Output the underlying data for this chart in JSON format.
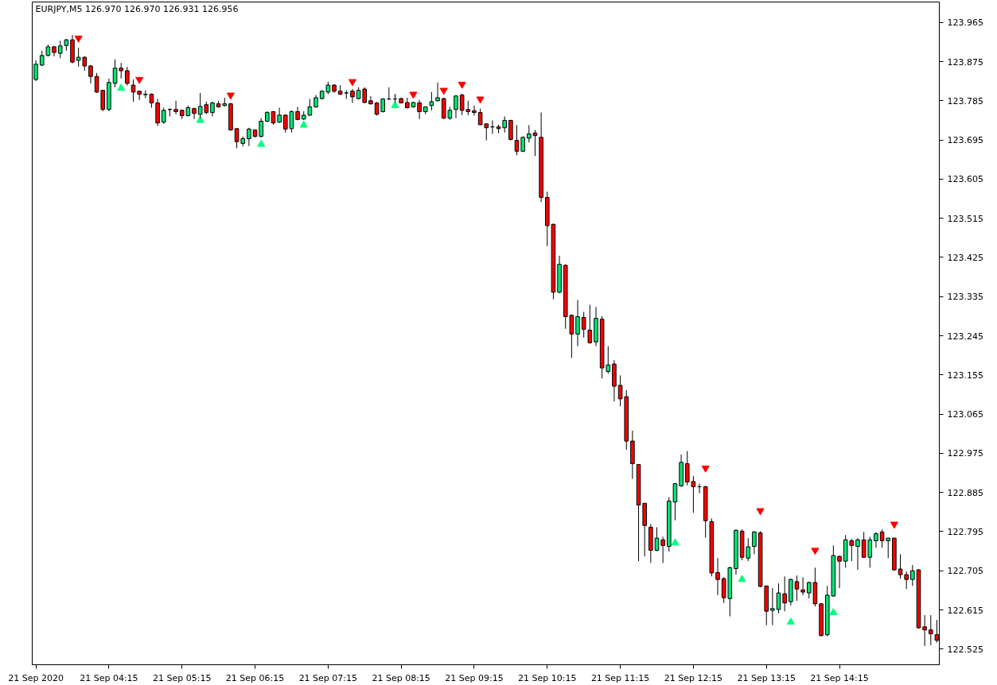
{
  "chart_data": {
    "type": "candlestick",
    "title": "EURJPY,M5 126.970 126.970 126.931 126.956",
    "x": [
      "2020-09-21T03:15",
      "2020-09-21T03:20",
      "2020-09-21T03:25",
      "2020-09-21T03:30",
      "2020-09-21T03:35",
      "2020-09-21T03:40",
      "2020-09-21T03:45",
      "2020-09-21T03:50",
      "2020-09-21T03:55",
      "2020-09-21T04:00",
      "2020-09-21T04:05",
      "2020-09-21T04:10",
      "2020-09-21T04:15",
      "2020-09-21T04:20",
      "2020-09-21T04:25",
      "2020-09-21T04:30",
      "2020-09-21T04:35",
      "2020-09-21T04:40",
      "2020-09-21T04:45",
      "2020-09-21T04:50",
      "2020-09-21T04:55",
      "2020-09-21T05:00",
      "2020-09-21T05:05",
      "2020-09-21T05:10",
      "2020-09-21T05:15",
      "2020-09-21T05:20",
      "2020-09-21T05:25",
      "2020-09-21T05:30",
      "2020-09-21T05:35",
      "2020-09-21T05:40",
      "2020-09-21T05:45",
      "2020-09-21T05:50",
      "2020-09-21T05:55",
      "2020-09-21T06:00",
      "2020-09-21T06:05",
      "2020-09-21T06:10",
      "2020-09-21T06:15",
      "2020-09-21T06:20",
      "2020-09-21T06:25",
      "2020-09-21T06:30",
      "2020-09-21T06:35",
      "2020-09-21T06:40",
      "2020-09-21T06:45",
      "2020-09-21T06:50",
      "2020-09-21T06:55",
      "2020-09-21T07:00",
      "2020-09-21T07:05",
      "2020-09-21T07:10",
      "2020-09-21T07:15",
      "2020-09-21T07:20",
      "2020-09-21T07:25",
      "2020-09-21T07:30",
      "2020-09-21T07:35",
      "2020-09-21T07:40",
      "2020-09-21T07:45",
      "2020-09-21T07:50",
      "2020-09-21T07:55",
      "2020-09-21T08:00",
      "2020-09-21T08:05",
      "2020-09-21T08:10",
      "2020-09-21T08:15",
      "2020-09-21T08:20",
      "2020-09-21T08:25",
      "2020-09-21T08:30",
      "2020-09-21T08:35",
      "2020-09-21T08:40",
      "2020-09-21T08:45",
      "2020-09-21T08:50",
      "2020-09-21T08:55",
      "2020-09-21T09:00",
      "2020-09-21T09:05",
      "2020-09-21T09:10",
      "2020-09-21T09:15",
      "2020-09-21T09:20",
      "2020-09-21T09:25",
      "2020-09-21T09:30",
      "2020-09-21T09:35",
      "2020-09-21T09:40",
      "2020-09-21T09:45",
      "2020-09-21T09:50",
      "2020-09-21T09:55",
      "2020-09-21T10:00",
      "2020-09-21T10:05",
      "2020-09-21T10:10",
      "2020-09-21T10:15",
      "2020-09-21T10:20",
      "2020-09-21T10:25",
      "2020-09-21T10:30",
      "2020-09-21T10:35",
      "2020-09-21T10:40",
      "2020-09-21T10:45",
      "2020-09-21T10:50",
      "2020-09-21T10:55",
      "2020-09-21T11:00",
      "2020-09-21T11:05",
      "2020-09-21T11:10",
      "2020-09-21T11:15",
      "2020-09-21T11:20",
      "2020-09-21T11:25",
      "2020-09-21T11:30",
      "2020-09-21T11:35",
      "2020-09-21T11:40",
      "2020-09-21T11:45",
      "2020-09-21T11:50",
      "2020-09-21T11:55",
      "2020-09-21T12:00",
      "2020-09-21T12:05",
      "2020-09-21T12:10",
      "2020-09-21T12:15",
      "2020-09-21T12:20",
      "2020-09-21T12:25",
      "2020-09-21T12:30",
      "2020-09-21T12:35",
      "2020-09-21T12:40",
      "2020-09-21T12:45",
      "2020-09-21T12:50",
      "2020-09-21T12:55",
      "2020-09-21T13:00",
      "2020-09-21T13:05",
      "2020-09-21T13:10",
      "2020-09-21T13:15",
      "2020-09-21T13:20",
      "2020-09-21T13:25",
      "2020-09-21T13:30",
      "2020-09-21T13:35",
      "2020-09-21T13:40",
      "2020-09-21T13:45",
      "2020-09-21T13:50",
      "2020-09-21T13:55",
      "2020-09-21T14:00",
      "2020-09-21T14:05",
      "2020-09-21T14:10",
      "2020-09-21T14:15",
      "2020-09-21T14:20",
      "2020-09-21T14:25",
      "2020-09-21T14:30",
      "2020-09-21T14:35",
      "2020-09-21T14:40",
      "2020-09-21T14:45",
      "2020-09-21T14:50",
      "2020-09-21T14:55",
      "2020-09-21T15:00",
      "2020-09-21T15:05",
      "2020-09-21T15:10",
      "2020-09-21T15:15",
      "2020-09-21T15:20",
      "2020-09-21T15:25",
      "2020-09-21T15:30",
      "2020-09-21T15:35"
    ],
    "ohlc": [
      [
        123.834,
        123.878,
        123.83,
        123.869
      ],
      [
        123.867,
        123.9,
        123.865,
        123.889
      ],
      [
        123.889,
        123.914,
        123.887,
        123.909
      ],
      [
        123.909,
        123.911,
        123.887,
        123.896
      ],
      [
        123.894,
        123.923,
        123.883,
        123.911
      ],
      [
        123.912,
        123.927,
        123.9,
        123.925
      ],
      [
        123.925,
        123.936,
        123.871,
        123.874
      ],
      [
        123.878,
        123.907,
        123.863,
        123.885
      ],
      [
        123.885,
        123.887,
        123.854,
        123.865
      ],
      [
        123.865,
        123.867,
        123.825,
        123.841
      ],
      [
        123.841,
        123.849,
        123.803,
        123.805
      ],
      [
        123.809,
        123.809,
        123.761,
        123.765
      ],
      [
        123.765,
        123.836,
        123.761,
        123.827
      ],
      [
        123.825,
        123.88,
        123.816,
        123.86
      ],
      [
        123.86,
        123.872,
        123.836,
        123.854
      ],
      [
        123.854,
        123.863,
        123.82,
        123.825
      ],
      [
        123.821,
        123.834,
        123.783,
        123.805
      ],
      [
        123.807,
        123.807,
        123.787,
        123.8
      ],
      [
        123.799,
        123.809,
        123.791,
        123.8
      ],
      [
        123.8,
        123.802,
        123.769,
        123.78
      ],
      [
        123.78,
        123.789,
        123.727,
        123.734
      ],
      [
        123.736,
        123.769,
        123.732,
        123.763
      ],
      [
        123.765,
        123.767,
        123.749,
        123.765
      ],
      [
        123.765,
        123.785,
        123.754,
        123.76
      ],
      [
        123.763,
        123.765,
        123.743,
        123.751
      ],
      [
        123.751,
        123.774,
        123.749,
        123.769
      ],
      [
        123.767,
        123.769,
        123.743,
        123.756
      ],
      [
        123.754,
        123.803,
        123.745,
        123.772
      ],
      [
        123.776,
        123.783,
        123.754,
        123.758
      ],
      [
        123.758,
        123.783,
        123.749,
        123.78
      ],
      [
        123.778,
        123.785,
        123.769,
        123.771
      ],
      [
        123.774,
        123.792,
        123.772,
        123.778
      ],
      [
        123.778,
        123.78,
        123.716,
        123.718
      ],
      [
        123.721,
        123.721,
        123.676,
        123.691
      ],
      [
        123.687,
        123.703,
        123.68,
        123.698
      ],
      [
        123.698,
        123.723,
        123.681,
        123.72
      ],
      [
        123.718,
        123.718,
        123.701,
        123.703
      ],
      [
        123.703,
        123.745,
        123.701,
        123.738
      ],
      [
        123.738,
        123.761,
        123.736,
        123.758
      ],
      [
        123.76,
        123.761,
        123.73,
        123.734
      ],
      [
        123.736,
        123.769,
        123.734,
        123.752
      ],
      [
        123.752,
        123.754,
        123.712,
        123.72
      ],
      [
        123.721,
        123.763,
        123.712,
        123.76
      ],
      [
        123.76,
        123.771,
        123.74,
        123.742
      ],
      [
        123.743,
        123.761,
        123.741,
        123.752
      ],
      [
        123.752,
        123.789,
        123.75,
        123.771
      ],
      [
        123.771,
        123.798,
        123.769,
        123.792
      ],
      [
        123.79,
        123.809,
        123.788,
        123.807
      ],
      [
        123.805,
        123.829,
        123.8,
        123.821
      ],
      [
        123.821,
        123.823,
        123.803,
        123.807
      ],
      [
        123.807,
        123.821,
        123.798,
        123.8
      ],
      [
        123.803,
        123.809,
        123.789,
        123.803
      ],
      [
        123.807,
        123.812,
        123.78,
        123.794
      ],
      [
        123.79,
        123.816,
        123.788,
        123.809
      ],
      [
        123.812,
        123.816,
        123.78,
        123.781
      ],
      [
        123.785,
        123.796,
        123.776,
        123.778
      ],
      [
        123.78,
        123.782,
        123.751,
        123.754
      ],
      [
        123.76,
        123.791,
        123.758,
        123.789
      ],
      [
        123.789,
        123.816,
        123.787,
        123.789
      ],
      [
        123.789,
        123.801,
        123.781,
        123.789
      ],
      [
        123.79,
        123.792,
        123.779,
        123.78
      ],
      [
        123.781,
        123.792,
        123.767,
        123.769
      ],
      [
        123.771,
        123.783,
        123.769,
        123.781
      ],
      [
        123.78,
        123.787,
        123.743,
        123.76
      ],
      [
        123.76,
        123.772,
        123.754,
        123.771
      ],
      [
        123.774,
        123.805,
        123.763,
        123.783
      ],
      [
        123.785,
        123.827,
        123.783,
        123.792
      ],
      [
        123.79,
        123.792,
        123.743,
        123.745
      ],
      [
        123.745,
        123.771,
        123.741,
        123.763
      ],
      [
        123.765,
        123.798,
        123.745,
        123.796
      ],
      [
        123.798,
        123.801,
        123.752,
        123.763
      ],
      [
        123.765,
        123.785,
        123.752,
        123.76
      ],
      [
        123.762,
        123.774,
        123.751,
        123.758
      ],
      [
        123.758,
        123.767,
        123.729,
        123.73
      ],
      [
        123.732,
        123.732,
        123.694,
        123.723
      ],
      [
        123.725,
        123.74,
        123.709,
        123.725
      ],
      [
        123.725,
        123.73,
        123.71,
        123.721
      ],
      [
        123.723,
        123.749,
        123.712,
        123.74
      ],
      [
        123.74,
        123.741,
        123.694,
        123.696
      ],
      [
        123.694,
        123.729,
        123.66,
        123.669
      ],
      [
        123.669,
        123.703,
        123.667,
        123.701
      ],
      [
        123.699,
        123.729,
        123.689,
        123.709
      ],
      [
        123.711,
        123.718,
        123.658,
        123.705
      ],
      [
        123.701,
        123.758,
        123.552,
        123.563
      ],
      [
        123.563,
        123.576,
        123.451,
        123.498
      ],
      [
        123.501,
        123.503,
        123.329,
        123.345
      ],
      [
        123.345,
        123.429,
        123.343,
        123.409
      ],
      [
        123.407,
        123.409,
        123.261,
        123.289
      ],
      [
        123.292,
        123.294,
        123.194,
        123.249
      ],
      [
        123.249,
        123.327,
        123.221,
        123.289
      ],
      [
        123.287,
        123.3,
        123.241,
        123.26
      ],
      [
        123.258,
        123.316,
        123.227,
        123.229
      ],
      [
        123.231,
        123.311,
        123.221,
        123.285
      ],
      [
        123.283,
        123.29,
        123.147,
        123.171
      ],
      [
        123.163,
        123.221,
        123.158,
        123.178
      ],
      [
        123.18,
        123.189,
        123.094,
        123.129
      ],
      [
        123.131,
        123.154,
        123.083,
        123.1
      ],
      [
        123.105,
        123.12,
        122.983,
        123.003
      ],
      [
        123.003,
        123.027,
        122.916,
        122.951
      ],
      [
        122.949,
        122.949,
        122.727,
        122.856
      ],
      [
        122.86,
        122.86,
        122.738,
        122.809
      ],
      [
        122.805,
        122.812,
        122.723,
        122.752
      ],
      [
        122.752,
        122.805,
        122.75,
        122.78
      ],
      [
        122.776,
        122.783,
        122.723,
        122.763
      ],
      [
        122.761,
        122.874,
        122.749,
        122.865
      ],
      [
        122.863,
        122.907,
        122.821,
        122.905
      ],
      [
        122.9,
        122.972,
        122.898,
        122.954
      ],
      [
        122.951,
        122.98,
        122.901,
        122.909
      ],
      [
        122.91,
        122.923,
        122.838,
        122.898
      ],
      [
        122.898,
        122.905,
        122.883,
        122.898
      ],
      [
        122.898,
        122.9,
        122.781,
        122.82
      ],
      [
        122.818,
        122.825,
        122.692,
        122.7
      ],
      [
        122.701,
        122.734,
        122.649,
        122.685
      ],
      [
        122.687,
        122.69,
        122.631,
        122.643
      ],
      [
        122.641,
        122.714,
        122.6,
        122.712
      ],
      [
        122.71,
        122.8,
        122.696,
        122.798
      ],
      [
        122.796,
        122.8,
        122.729,
        122.736
      ],
      [
        122.734,
        122.78,
        122.727,
        122.76
      ],
      [
        122.761,
        122.796,
        122.743,
        122.794
      ],
      [
        122.792,
        122.796,
        122.667,
        122.669
      ],
      [
        122.67,
        122.67,
        122.58,
        122.612
      ],
      [
        122.614,
        122.665,
        122.58,
        122.618
      ],
      [
        122.616,
        122.676,
        122.607,
        122.654
      ],
      [
        122.652,
        122.692,
        122.612,
        122.631
      ],
      [
        122.634,
        122.687,
        122.625,
        122.685
      ],
      [
        122.68,
        122.694,
        122.636,
        122.663
      ],
      [
        122.661,
        122.69,
        122.649,
        122.656
      ],
      [
        122.654,
        122.68,
        122.641,
        122.678
      ],
      [
        122.678,
        122.712,
        122.623,
        122.629
      ],
      [
        122.629,
        122.631,
        122.554,
        122.556
      ],
      [
        122.558,
        122.67,
        122.554,
        122.649
      ],
      [
        122.647,
        122.763,
        122.645,
        122.74
      ],
      [
        122.738,
        122.74,
        122.665,
        122.727
      ],
      [
        122.727,
        122.787,
        122.712,
        122.776
      ],
      [
        122.774,
        122.778,
        122.727,
        122.763
      ],
      [
        122.761,
        122.78,
        122.707,
        122.776
      ],
      [
        122.776,
        122.794,
        122.734,
        122.736
      ],
      [
        122.736,
        122.783,
        122.712,
        122.776
      ],
      [
        122.774,
        122.794,
        122.758,
        122.79
      ],
      [
        122.794,
        122.8,
        122.758,
        122.774
      ],
      [
        122.774,
        122.781,
        122.734,
        122.78
      ],
      [
        122.78,
        122.781,
        122.705,
        122.707
      ],
      [
        122.709,
        122.743,
        122.687,
        122.696
      ],
      [
        122.696,
        122.703,
        122.663,
        122.685
      ],
      [
        122.685,
        122.718,
        122.67,
        122.705
      ],
      [
        122.707,
        122.709,
        122.572,
        122.574
      ],
      [
        122.576,
        122.603,
        122.532,
        122.569
      ],
      [
        122.569,
        122.603,
        122.534,
        122.56
      ],
      [
        122.558,
        122.592,
        122.54,
        122.545
      ]
    ],
    "colors": [
      "#00e676",
      "#00e676",
      "#00e676",
      "#ff0000",
      "#00e676",
      "#00e676",
      "#ff0000",
      "#00e676",
      "#ff0000",
      "#ff0000",
      "#ff0000",
      "#ff0000",
      "#00e676",
      "#00e676",
      "#ff0000",
      "#ff0000",
      "#ff0000",
      "#ff0000",
      "#00e676",
      "#ff0000",
      "#ff0000",
      "#00e676",
      "#000000",
      "#ff0000",
      "#ff0000",
      "#00e676",
      "#ff0000",
      "#00e676",
      "#ff0000",
      "#00e676",
      "#ff0000",
      "#00e676",
      "#ff0000",
      "#ff0000",
      "#00e676",
      "#00e676",
      "#ff0000",
      "#00e676",
      "#00e676",
      "#ff0000",
      "#00e676",
      "#ff0000",
      "#00e676",
      "#ff0000",
      "#00e676",
      "#00e676",
      "#00e676",
      "#00e676",
      "#00e676",
      "#ff0000",
      "#ff0000",
      "#000000",
      "#ff0000",
      "#00e676",
      "#ff0000",
      "#ff0000",
      "#ff0000",
      "#00e676",
      "#000000",
      "#000000",
      "#ff0000",
      "#ff0000",
      "#00e676",
      "#ff0000",
      "#00e676",
      "#00e676",
      "#00e676",
      "#ff0000",
      "#00e676",
      "#00e676",
      "#ff0000",
      "#ff0000",
      "#ff0000",
      "#ff0000",
      "#ff0000",
      "#000000",
      "#ff0000",
      "#00e676",
      "#ff0000",
      "#ff0000",
      "#00e676",
      "#00e676",
      "#ff0000",
      "#ff0000",
      "#ff0000",
      "#ff0000",
      "#00e676",
      "#ff0000",
      "#ff0000",
      "#00e676",
      "#ff0000",
      "#ff0000",
      "#00e676",
      "#ff0000",
      "#00e676",
      "#ff0000",
      "#ff0000",
      "#ff0000",
      "#ff0000",
      "#ff0000",
      "#ff0000",
      "#ff0000",
      "#00e676",
      "#ff0000",
      "#00e676",
      "#00e676",
      "#00e676",
      "#ff0000",
      "#ff0000",
      "#000000",
      "#ff0000",
      "#ff0000",
      "#ff0000",
      "#ff0000",
      "#00e676",
      "#00e676",
      "#ff0000",
      "#00e676",
      "#00e676",
      "#ff0000",
      "#ff0000",
      "#00e676",
      "#00e676",
      "#ff0000",
      "#00e676",
      "#ff0000",
      "#ff0000",
      "#00e676",
      "#ff0000",
      "#ff0000",
      "#00e676",
      "#00e676",
      "#ff0000",
      "#00e676",
      "#ff0000",
      "#00e676",
      "#ff0000",
      "#00e676",
      "#00e676",
      "#ff0000",
      "#00e676",
      "#ff0000",
      "#ff0000",
      "#ff0000",
      "#00e676",
      "#ff0000",
      "#ff0000",
      "#ff0000",
      "#ff0000"
    ],
    "series": [
      {
        "type": "scatter",
        "marker": "triangle",
        "color": "#ff0000",
        "x": [
          "2020-09-21T03:50",
          "2020-09-21T04:40",
          "2020-09-21T05:55",
          "2020-09-21T07:35",
          "2020-09-21T08:25",
          "2020-09-21T08:50",
          "2020-09-21T09:05",
          "2020-09-21T09:20",
          "2020-09-21T12:25",
          "2020-09-21T13:10",
          "2020-09-21T13:55",
          "2020-09-21T15:00"
        ],
        "values": [
          123.929,
          123.834,
          123.798,
          123.829,
          123.8,
          123.809,
          123.823,
          123.789,
          122.941,
          122.843,
          122.752,
          122.812
        ]
      },
      {
        "type": "scatter",
        "marker": "triangle",
        "color": "#00ff7f",
        "x": [
          "2020-09-21T04:25",
          "2020-09-21T05:30",
          "2020-09-21T06:20",
          "2020-09-21T06:55",
          "2020-09-21T08:10",
          "2020-09-21T12:00",
          "2020-09-21T12:55",
          "2020-09-21T13:35",
          "2020-09-21T14:10"
        ],
        "values": [
          123.814,
          123.74,
          123.685,
          123.729,
          123.774,
          122.769,
          122.685,
          122.587,
          122.609
        ]
      }
    ],
    "xlim": [
      "2020-09-21T03:12",
      "2020-09-21T15:37"
    ],
    "xticks": [
      {
        "value": "2020-09-21T03:15",
        "label": "21 Sep 2020"
      },
      {
        "value": "2020-09-21T04:15",
        "label": "21 Sep 04:15"
      },
      {
        "value": "2020-09-21T05:15",
        "label": "21 Sep 05:15"
      },
      {
        "value": "2020-09-21T06:15",
        "label": "21 Sep 06:15"
      },
      {
        "value": "2020-09-21T07:15",
        "label": "21 Sep 07:15"
      },
      {
        "value": "2020-09-21T08:15",
        "label": "21 Sep 08:15"
      },
      {
        "value": "2020-09-21T09:15",
        "label": "21 Sep 09:15"
      },
      {
        "value": "2020-09-21T10:15",
        "label": "21 Sep 10:15"
      },
      {
        "value": "2020-09-21T11:15",
        "label": "21 Sep 11:15"
      },
      {
        "value": "2020-09-21T12:15",
        "label": "21 Sep 12:15"
      },
      {
        "value": "2020-09-21T13:15",
        "label": "21 Sep 13:15"
      },
      {
        "value": "2020-09-21T14:15",
        "label": "21 Sep 14:15"
      }
    ],
    "ylim": [
      122.489,
      124.012
    ],
    "yticks": [
      123.965,
      123.875,
      123.785,
      123.695,
      123.605,
      123.515,
      123.425,
      123.335,
      123.245,
      123.155,
      123.065,
      122.975,
      122.885,
      122.795,
      122.705,
      122.615,
      122.525
    ],
    "grid": false
  }
}
